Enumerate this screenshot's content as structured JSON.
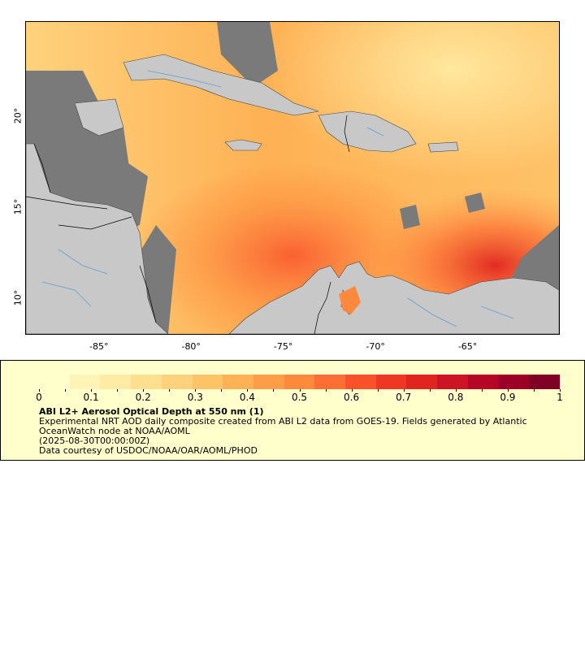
{
  "map": {
    "x_ticks": [
      "-85°",
      "-80°",
      "-75°",
      "-70°",
      "-65°"
    ],
    "y_ticks": [
      "20°",
      "15°",
      "10°"
    ],
    "lon_range": [
      -89,
      -60
    ],
    "lat_range": [
      8,
      25.2
    ],
    "land_color": "#c8c8c8",
    "nodata_color": "#7a7a7a",
    "border_color": "#000000",
    "river_color": "#5f9ed6"
  },
  "legend": {
    "colorbar_min": 0,
    "colorbar_max": 1,
    "tick_labels": [
      "0",
      "0.1",
      "0.2",
      "0.3",
      "0.4",
      "0.5",
      "0.6",
      "0.7",
      "0.8",
      "0.9",
      "1"
    ],
    "colors": [
      "#ffffcc",
      "#fff4b8",
      "#ffeca4",
      "#fedf8f",
      "#fed27c",
      "#fec267",
      "#feb155",
      "#fd9d48",
      "#fd8a3c",
      "#fc6e33",
      "#f9522b",
      "#ee3823",
      "#e0241f",
      "#cc1424",
      "#b60626",
      "#9c0026",
      "#800026"
    ],
    "title": "ABI L2+ Aerosol Optical Depth at 550 nm (1)",
    "description": "Experimental NRT AOD daily composite created from ABI L2 data from GOES-19. Fields generated by Atlantic OceanWatch node at NOAA/AOML",
    "date": "(2025-08-30T00:00:00Z)",
    "credit": "Data courtesy of USDOC/NOAA/OAR/AOML/PHOD"
  }
}
